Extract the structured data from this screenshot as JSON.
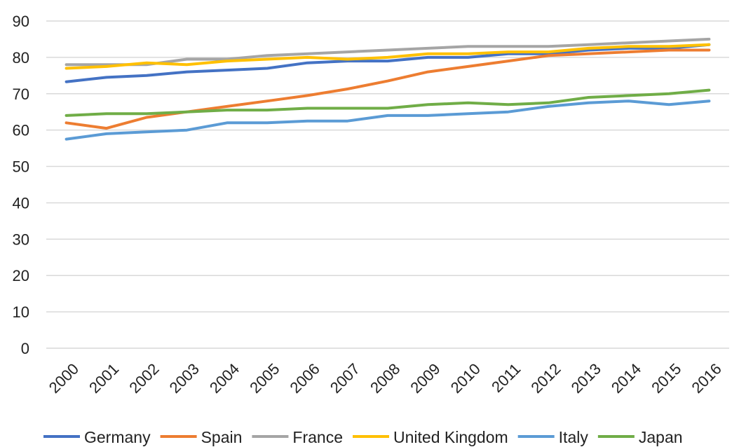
{
  "chart_data": {
    "type": "line",
    "title": "",
    "xlabel": "",
    "ylabel": "",
    "ylim": [
      0,
      90
    ],
    "yticks": [
      "0",
      "10",
      "20",
      "30",
      "40",
      "50",
      "60",
      "70",
      "80",
      "90"
    ],
    "categories": [
      "2000",
      "2001",
      "2002",
      "2003",
      "2004",
      "2005",
      "2006",
      "2007",
      "2008",
      "2009",
      "2010",
      "2011",
      "2012",
      "2013",
      "2014",
      "2015",
      "2016"
    ],
    "grid": true,
    "legend_position": "bottom",
    "series": [
      {
        "name": "Germany",
        "color": "#4472c4",
        "values": [
          73.3,
          74.5,
          75.0,
          76.0,
          76.5,
          77.0,
          78.5,
          79.0,
          79.0,
          80.0,
          80.0,
          81.0,
          81.0,
          82.0,
          82.5,
          82.5,
          83.5
        ]
      },
      {
        "name": "Spain",
        "color": "#ed7d31",
        "values": [
          62.0,
          60.5,
          63.5,
          65.0,
          66.5,
          68.0,
          69.5,
          71.3,
          73.5,
          76.0,
          77.5,
          79.0,
          80.5,
          81.0,
          81.5,
          82.0,
          82.0
        ]
      },
      {
        "name": "France",
        "color": "#a5a5a5",
        "values": [
          78.0,
          78.0,
          78.0,
          79.5,
          79.5,
          80.5,
          81.0,
          81.5,
          82.0,
          82.5,
          83.0,
          83.0,
          83.0,
          83.5,
          84.0,
          84.5,
          85.0
        ]
      },
      {
        "name": "United Kingdom",
        "color": "#ffc000",
        "values": [
          77.0,
          77.5,
          78.5,
          78.0,
          79.0,
          79.5,
          80.0,
          79.5,
          80.0,
          81.0,
          81.0,
          81.5,
          81.5,
          82.5,
          83.0,
          83.0,
          83.5
        ]
      },
      {
        "name": "Italy",
        "color": "#5b9bd5",
        "values": [
          57.5,
          59.0,
          59.5,
          60.0,
          62.0,
          62.0,
          62.5,
          62.5,
          64.0,
          64.0,
          64.5,
          65.0,
          66.5,
          67.5,
          68.0,
          67.0,
          68.0
        ]
      },
      {
        "name": "Japan",
        "color": "#70ad47",
        "values": [
          64.0,
          64.5,
          64.5,
          65.0,
          65.5,
          65.5,
          66.0,
          66.0,
          66.0,
          67.0,
          67.5,
          67.0,
          67.5,
          69.0,
          69.5,
          70.0,
          71.0
        ]
      }
    ]
  }
}
